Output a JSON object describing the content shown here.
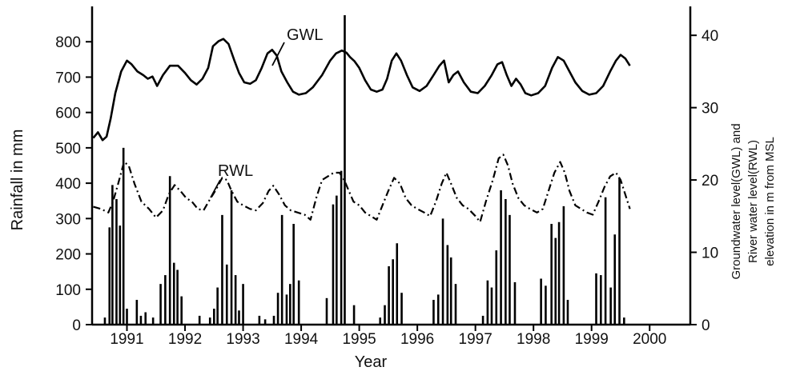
{
  "chart_data": {
    "type": "bar+line",
    "xlabel": "Year",
    "ylabel_left": "Rainfall in mm",
    "ylabel_right": [
      "Groundwater level(GWL) and",
      "River water level(RWL)",
      "elevation in m from MSL"
    ],
    "x_ticks": [
      "1991",
      "1992",
      "1993",
      "1994",
      "1995",
      "1996",
      "1997",
      "1998",
      "1999",
      "2000"
    ],
    "y_left_ticks": [
      "0",
      "100",
      "200",
      "300",
      "400",
      "500",
      "600",
      "700",
      "800"
    ],
    "y_left_range": [
      0,
      900
    ],
    "y_right_ticks": [
      "0",
      "10",
      "20",
      "30",
      "40"
    ],
    "y_right_range": [
      0,
      44
    ],
    "x_range": [
      1990.4,
      2000.7
    ],
    "rainfall": [
      {
        "x": 1990.62,
        "y": 20
      },
      {
        "x": 1990.7,
        "y": 275
      },
      {
        "x": 1990.75,
        "y": 395
      },
      {
        "x": 1990.82,
        "y": 355
      },
      {
        "x": 1990.88,
        "y": 280
      },
      {
        "x": 1990.94,
        "y": 500
      },
      {
        "x": 1991.0,
        "y": 45
      },
      {
        "x": 1991.17,
        "y": 70
      },
      {
        "x": 1991.24,
        "y": 25
      },
      {
        "x": 1991.32,
        "y": 35
      },
      {
        "x": 1991.45,
        "y": 20
      },
      {
        "x": 1991.58,
        "y": 115
      },
      {
        "x": 1991.66,
        "y": 140
      },
      {
        "x": 1991.74,
        "y": 420
      },
      {
        "x": 1991.81,
        "y": 175
      },
      {
        "x": 1991.87,
        "y": 155
      },
      {
        "x": 1991.94,
        "y": 80
      },
      {
        "x": 1992.25,
        "y": 25
      },
      {
        "x": 1992.43,
        "y": 20
      },
      {
        "x": 1992.5,
        "y": 45
      },
      {
        "x": 1992.56,
        "y": 105
      },
      {
        "x": 1992.64,
        "y": 310
      },
      {
        "x": 1992.72,
        "y": 170
      },
      {
        "x": 1992.8,
        "y": 380
      },
      {
        "x": 1992.87,
        "y": 140
      },
      {
        "x": 1992.93,
        "y": 40
      },
      {
        "x": 1993.0,
        "y": 115
      },
      {
        "x": 1993.28,
        "y": 25
      },
      {
        "x": 1993.38,
        "y": 15
      },
      {
        "x": 1993.53,
        "y": 25
      },
      {
        "x": 1993.6,
        "y": 90
      },
      {
        "x": 1993.67,
        "y": 310
      },
      {
        "x": 1993.75,
        "y": 85
      },
      {
        "x": 1993.81,
        "y": 115
      },
      {
        "x": 1993.87,
        "y": 285
      },
      {
        "x": 1993.96,
        "y": 125
      },
      {
        "x": 1994.44,
        "y": 75
      },
      {
        "x": 1994.55,
        "y": 340
      },
      {
        "x": 1994.61,
        "y": 365
      },
      {
        "x": 1994.69,
        "y": 435
      },
      {
        "x": 1994.75,
        "y": 875
      },
      {
        "x": 1994.91,
        "y": 55
      },
      {
        "x": 1995.36,
        "y": 20
      },
      {
        "x": 1995.44,
        "y": 55
      },
      {
        "x": 1995.51,
        "y": 165
      },
      {
        "x": 1995.58,
        "y": 185
      },
      {
        "x": 1995.65,
        "y": 230
      },
      {
        "x": 1995.73,
        "y": 90
      },
      {
        "x": 1996.28,
        "y": 70
      },
      {
        "x": 1996.36,
        "y": 85
      },
      {
        "x": 1996.44,
        "y": 300
      },
      {
        "x": 1996.52,
        "y": 225
      },
      {
        "x": 1996.58,
        "y": 190
      },
      {
        "x": 1996.66,
        "y": 115
      },
      {
        "x": 1997.13,
        "y": 25
      },
      {
        "x": 1997.21,
        "y": 125
      },
      {
        "x": 1997.28,
        "y": 105
      },
      {
        "x": 1997.36,
        "y": 210
      },
      {
        "x": 1997.44,
        "y": 380
      },
      {
        "x": 1997.52,
        "y": 355
      },
      {
        "x": 1997.59,
        "y": 310
      },
      {
        "x": 1997.68,
        "y": 120
      },
      {
        "x": 1998.13,
        "y": 130
      },
      {
        "x": 1998.21,
        "y": 110
      },
      {
        "x": 1998.31,
        "y": 285
      },
      {
        "x": 1998.38,
        "y": 245
      },
      {
        "x": 1998.44,
        "y": 290
      },
      {
        "x": 1998.52,
        "y": 335
      },
      {
        "x": 1998.59,
        "y": 70
      },
      {
        "x": 1999.08,
        "y": 145
      },
      {
        "x": 1999.16,
        "y": 140
      },
      {
        "x": 1999.24,
        "y": 360
      },
      {
        "x": 1999.33,
        "y": 105
      },
      {
        "x": 1999.4,
        "y": 255
      },
      {
        "x": 1999.48,
        "y": 415
      },
      {
        "x": 1999.56,
        "y": 20
      }
    ],
    "series": [
      {
        "name": "GWL",
        "style": "solid",
        "points": [
          [
            1990.42,
            25.8
          ],
          [
            1990.5,
            26.6
          ],
          [
            1990.58,
            25.5
          ],
          [
            1990.65,
            26.0
          ],
          [
            1990.72,
            28.5
          ],
          [
            1990.8,
            32.0
          ],
          [
            1990.9,
            35.0
          ],
          [
            1991.0,
            36.5
          ],
          [
            1991.08,
            36.0
          ],
          [
            1991.18,
            35.0
          ],
          [
            1991.28,
            34.5
          ],
          [
            1991.36,
            34.0
          ],
          [
            1991.44,
            34.3
          ],
          [
            1991.52,
            33.0
          ],
          [
            1991.62,
            34.5
          ],
          [
            1991.74,
            35.8
          ],
          [
            1991.88,
            35.8
          ],
          [
            1992.0,
            34.8
          ],
          [
            1992.1,
            33.8
          ],
          [
            1992.2,
            33.2
          ],
          [
            1992.3,
            34.0
          ],
          [
            1992.4,
            35.5
          ],
          [
            1992.48,
            38.5
          ],
          [
            1992.58,
            39.2
          ],
          [
            1992.66,
            39.5
          ],
          [
            1992.75,
            38.8
          ],
          [
            1992.85,
            36.5
          ],
          [
            1992.93,
            34.8
          ],
          [
            1993.02,
            33.5
          ],
          [
            1993.12,
            33.3
          ],
          [
            1993.22,
            33.8
          ],
          [
            1993.32,
            35.5
          ],
          [
            1993.42,
            37.5
          ],
          [
            1993.5,
            38.0
          ],
          [
            1993.58,
            37.2
          ],
          [
            1993.66,
            35.0
          ],
          [
            1993.76,
            33.5
          ],
          [
            1993.86,
            32.2
          ],
          [
            1993.96,
            31.8
          ],
          [
            1994.08,
            32.0
          ],
          [
            1994.2,
            32.8
          ],
          [
            1994.36,
            34.5
          ],
          [
            1994.5,
            36.5
          ],
          [
            1994.6,
            37.5
          ],
          [
            1994.7,
            37.9
          ],
          [
            1994.78,
            37.6
          ],
          [
            1994.84,
            37.0
          ],
          [
            1994.92,
            36.4
          ],
          [
            1995.0,
            35.5
          ],
          [
            1995.1,
            33.8
          ],
          [
            1995.2,
            32.5
          ],
          [
            1995.3,
            32.2
          ],
          [
            1995.4,
            32.5
          ],
          [
            1995.48,
            34.0
          ],
          [
            1995.56,
            36.5
          ],
          [
            1995.64,
            37.5
          ],
          [
            1995.72,
            36.5
          ],
          [
            1995.82,
            34.5
          ],
          [
            1995.92,
            32.8
          ],
          [
            1996.04,
            32.3
          ],
          [
            1996.16,
            33.0
          ],
          [
            1996.28,
            34.5
          ],
          [
            1996.38,
            35.8
          ],
          [
            1996.46,
            36.5
          ],
          [
            1996.54,
            33.5
          ],
          [
            1996.62,
            34.5
          ],
          [
            1996.7,
            35.0
          ],
          [
            1996.8,
            33.5
          ],
          [
            1996.92,
            32.2
          ],
          [
            1997.04,
            32.0
          ],
          [
            1997.16,
            33.0
          ],
          [
            1997.28,
            34.5
          ],
          [
            1997.38,
            36.0
          ],
          [
            1997.46,
            36.3
          ],
          [
            1997.54,
            34.5
          ],
          [
            1997.62,
            33.0
          ],
          [
            1997.7,
            34.0
          ],
          [
            1997.78,
            33.2
          ],
          [
            1997.86,
            32.0
          ],
          [
            1997.96,
            31.7
          ],
          [
            1998.08,
            32.0
          ],
          [
            1998.2,
            33.0
          ],
          [
            1998.32,
            35.5
          ],
          [
            1998.42,
            37.0
          ],
          [
            1998.52,
            36.5
          ],
          [
            1998.62,
            35.0
          ],
          [
            1998.72,
            33.5
          ],
          [
            1998.84,
            32.3
          ],
          [
            1998.96,
            31.8
          ],
          [
            1999.08,
            32.0
          ],
          [
            1999.2,
            33.0
          ],
          [
            1999.32,
            35.0
          ],
          [
            1999.42,
            36.5
          ],
          [
            1999.5,
            37.3
          ],
          [
            1999.58,
            36.8
          ],
          [
            1999.66,
            35.8
          ]
        ]
      },
      {
        "name": "RWL",
        "style": "dashed",
        "points": [
          [
            1990.42,
            16.3
          ],
          [
            1990.55,
            16.0
          ],
          [
            1990.68,
            15.5
          ],
          [
            1990.76,
            17.0
          ],
          [
            1990.85,
            19.5
          ],
          [
            1990.95,
            22.5
          ],
          [
            1991.03,
            22.0
          ],
          [
            1991.13,
            19.5
          ],
          [
            1991.25,
            17.0
          ],
          [
            1991.38,
            16.0
          ],
          [
            1991.5,
            14.8
          ],
          [
            1991.62,
            15.8
          ],
          [
            1991.72,
            18.0
          ],
          [
            1991.82,
            19.3
          ],
          [
            1991.92,
            18.5
          ],
          [
            1992.02,
            17.5
          ],
          [
            1992.12,
            17.0
          ],
          [
            1992.22,
            16.0
          ],
          [
            1992.32,
            15.8
          ],
          [
            1992.42,
            17.2
          ],
          [
            1992.52,
            18.5
          ],
          [
            1992.64,
            20.3
          ],
          [
            1992.72,
            20.0
          ],
          [
            1992.8,
            18.5
          ],
          [
            1992.9,
            17.0
          ],
          [
            1993.0,
            16.5
          ],
          [
            1993.12,
            16.0
          ],
          [
            1993.22,
            15.8
          ],
          [
            1993.34,
            16.8
          ],
          [
            1993.44,
            18.5
          ],
          [
            1993.52,
            19.2
          ],
          [
            1993.62,
            18.0
          ],
          [
            1993.72,
            16.5
          ],
          [
            1993.82,
            15.8
          ],
          [
            1993.94,
            15.5
          ],
          [
            1994.06,
            15.2
          ],
          [
            1994.16,
            14.5
          ],
          [
            1994.26,
            17.5
          ],
          [
            1994.36,
            20.0
          ],
          [
            1994.46,
            20.5
          ],
          [
            1994.56,
            21.0
          ],
          [
            1994.66,
            21.0
          ],
          [
            1994.74,
            20.0
          ],
          [
            1994.82,
            18.5
          ],
          [
            1994.9,
            17.0
          ],
          [
            1995.0,
            16.5
          ],
          [
            1995.1,
            15.5
          ],
          [
            1995.2,
            15.0
          ],
          [
            1995.3,
            14.5
          ],
          [
            1995.4,
            16.5
          ],
          [
            1995.5,
            18.5
          ],
          [
            1995.6,
            20.3
          ],
          [
            1995.7,
            19.5
          ],
          [
            1995.8,
            17.5
          ],
          [
            1995.9,
            16.5
          ],
          [
            1996.0,
            16.0
          ],
          [
            1996.12,
            15.5
          ],
          [
            1996.22,
            15.0
          ],
          [
            1996.32,
            17.0
          ],
          [
            1996.42,
            19.5
          ],
          [
            1996.5,
            21.0
          ],
          [
            1996.58,
            19.5
          ],
          [
            1996.68,
            17.5
          ],
          [
            1996.78,
            16.5
          ],
          [
            1996.88,
            16.0
          ],
          [
            1997.0,
            15.0
          ],
          [
            1997.08,
            14.2
          ],
          [
            1997.18,
            17.0
          ],
          [
            1997.3,
            20.0
          ],
          [
            1997.4,
            23.0
          ],
          [
            1997.48,
            23.5
          ],
          [
            1997.56,
            22.0
          ],
          [
            1997.64,
            19.5
          ],
          [
            1997.74,
            17.5
          ],
          [
            1997.84,
            16.5
          ],
          [
            1997.94,
            16.0
          ],
          [
            1998.06,
            15.5
          ],
          [
            1998.16,
            16.0
          ],
          [
            1998.26,
            18.5
          ],
          [
            1998.36,
            21.0
          ],
          [
            1998.46,
            22.5
          ],
          [
            1998.54,
            21.0
          ],
          [
            1998.62,
            18.5
          ],
          [
            1998.72,
            16.5
          ],
          [
            1998.82,
            16.0
          ],
          [
            1998.92,
            15.5
          ],
          [
            1999.02,
            15.2
          ],
          [
            1999.12,
            17.0
          ],
          [
            1999.22,
            19.0
          ],
          [
            1999.32,
            20.5
          ],
          [
            1999.42,
            21.0
          ],
          [
            1999.5,
            20.0
          ],
          [
            1999.58,
            18.0
          ],
          [
            1999.66,
            16.0
          ]
        ]
      }
    ],
    "annotations": {
      "gwl_label": "GWL",
      "rwl_label": "RWL"
    }
  }
}
